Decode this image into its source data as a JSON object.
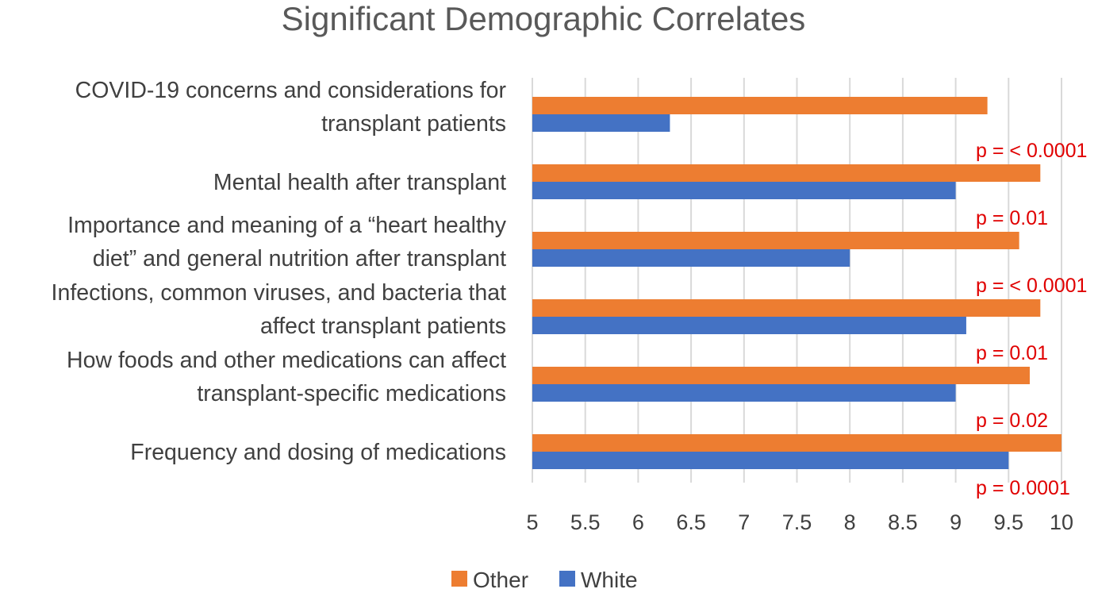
{
  "chart_data": {
    "type": "bar",
    "orientation": "horizontal",
    "title": "Significant Demographic Correlates",
    "categories": [
      {
        "lines": [
          "COVID-19 concerns and considerations for",
          "transplant patients"
        ],
        "p_label": "p = < 0.0001"
      },
      {
        "lines": [
          "Mental health after transplant"
        ],
        "p_label": "p = 0.01"
      },
      {
        "lines": [
          "Importance and meaning of a “heart healthy",
          "diet” and general nutrition after transplant"
        ],
        "p_label": "p = < 0.0001"
      },
      {
        "lines": [
          "Infections, common viruses, and bacteria that",
          "affect transplant patients"
        ],
        "p_label": "p = 0.01"
      },
      {
        "lines": [
          "How foods and other medications can affect",
          "transplant-specific medications"
        ],
        "p_label": "p = 0.02"
      },
      {
        "lines": [
          "Frequency and dosing of medications"
        ],
        "p_label": "p = 0.0001"
      }
    ],
    "series": [
      {
        "name": "Other",
        "color": "#ed7d31",
        "values": [
          9.3,
          9.8,
          9.6,
          9.8,
          9.7,
          10.0
        ]
      },
      {
        "name": "White",
        "color": "#4472c4",
        "values": [
          6.3,
          9.0,
          8.0,
          9.1,
          9.0,
          9.5
        ]
      }
    ],
    "xlim": [
      5,
      10
    ],
    "ticks": [
      "5",
      "5.5",
      "6",
      "6.5",
      "7",
      "7.5",
      "8",
      "8.5",
      "9",
      "9.5",
      "10"
    ],
    "legend_position": "bottom",
    "grid": true
  }
}
